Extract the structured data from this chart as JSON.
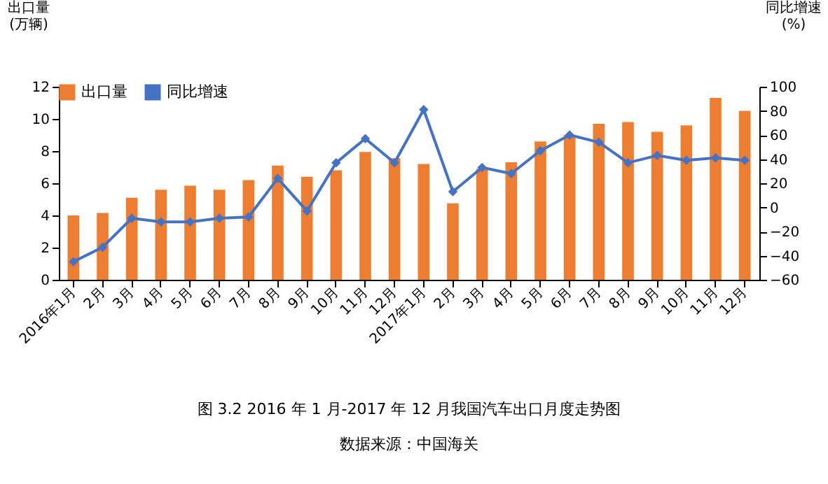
{
  "chart_data": {
    "type": "bar",
    "title": "图 3.2 2016 年 1 月-2017 年 12 月我国汽车出口月度走势图",
    "annotations": [
      "数据来源：中国海关"
    ],
    "ylabel": "出口量\n(万辆)",
    "y2label": "同比增速\n(%)",
    "categories": [
      "2016年1月",
      "2月",
      "3月",
      "4月",
      "5月",
      "6月",
      "7月",
      "8月",
      "9月",
      "10月",
      "11月",
      "12月",
      "2017年1月",
      "2月",
      "3月",
      "4月",
      "5月",
      "6月",
      "7月",
      "8月",
      "9月",
      "10月",
      "11月",
      "12月"
    ],
    "series": [
      {
        "name": "出口量",
        "color": "#ed7d31",
        "values": [
          4.0,
          4.15,
          5.1,
          5.6,
          5.85,
          5.6,
          6.2,
          7.1,
          6.4,
          6.8,
          7.95,
          7.55,
          7.2,
          4.75,
          6.9,
          7.3,
          8.6,
          9.0,
          9.7,
          9.8,
          9.2,
          9.6,
          11.3,
          10.5
        ]
      },
      {
        "name": "同比增速",
        "type": "line",
        "axis": "y2",
        "color": "#4472c4",
        "marker": "diamond",
        "values": [
          -45,
          -33,
          -9,
          -12,
          -12,
          -9,
          -8,
          24,
          -3,
          37,
          57,
          37,
          81,
          13,
          33,
          28,
          47,
          60,
          54,
          37,
          43,
          39,
          41,
          39
        ]
      }
    ],
    "ylim": [
      0,
      12
    ],
    "yticks": [
      0,
      2,
      4,
      6,
      8,
      10,
      12
    ],
    "y2lim": [
      -60,
      100
    ],
    "y2ticks": [
      -60,
      -40,
      -20,
      0,
      20,
      40,
      60,
      80,
      100
    ],
    "grid": false,
    "legend": "top"
  }
}
